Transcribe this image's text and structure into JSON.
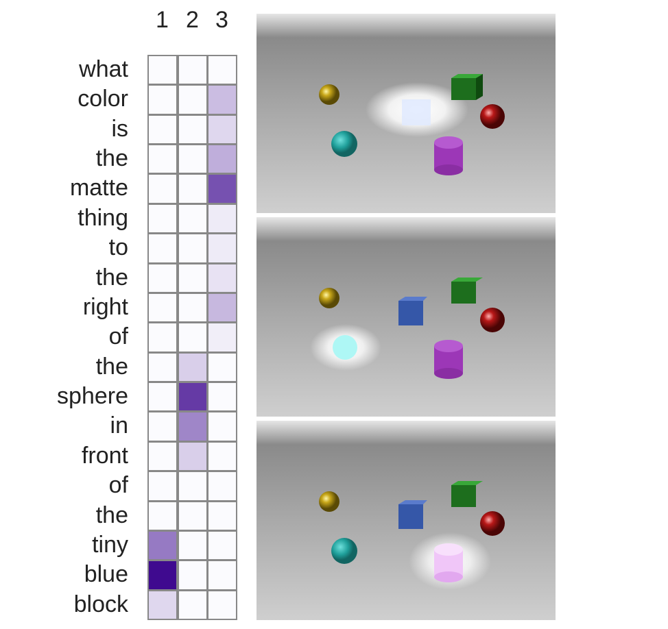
{
  "columns": [
    "1",
    "2",
    "3"
  ],
  "words": [
    "what",
    "color",
    "is",
    "the",
    "matte",
    "thing",
    "to",
    "the",
    "right",
    "of",
    "the",
    "sphere",
    "in",
    "front",
    "of",
    "the",
    "tiny",
    "blue",
    "block"
  ],
  "chart_data": {
    "type": "heatmap",
    "rows": [
      "what",
      "color",
      "is",
      "the",
      "matte",
      "thing",
      "to",
      "the",
      "right",
      "of",
      "the",
      "sphere",
      "in",
      "front",
      "of",
      "the",
      "tiny",
      "blue",
      "block"
    ],
    "columns": [
      "1",
      "2",
      "3"
    ],
    "values": [
      [
        0.0,
        0.0,
        0.0
      ],
      [
        0.0,
        0.0,
        0.22
      ],
      [
        0.0,
        0.0,
        0.12
      ],
      [
        0.0,
        0.0,
        0.28
      ],
      [
        0.0,
        0.0,
        0.68
      ],
      [
        0.0,
        0.0,
        0.05
      ],
      [
        0.0,
        0.0,
        0.05
      ],
      [
        0.0,
        0.0,
        0.08
      ],
      [
        0.0,
        0.0,
        0.24
      ],
      [
        0.0,
        0.0,
        0.04
      ],
      [
        0.0,
        0.15,
        0.0
      ],
      [
        0.0,
        0.78,
        0.0
      ],
      [
        0.0,
        0.45,
        0.0
      ],
      [
        0.0,
        0.15,
        0.0
      ],
      [
        0.0,
        0.0,
        0.0
      ],
      [
        0.0,
        0.0,
        0.0
      ],
      [
        0.5,
        0.0,
        0.0
      ],
      [
        1.0,
        0.0,
        0.0
      ],
      [
        0.12,
        0.0,
        0.0
      ]
    ],
    "color_low": "#fbfbfe",
    "color_high": "#3f0a8f"
  },
  "scenes": [
    {
      "name": "scene-1",
      "highlight": "cube"
    },
    {
      "name": "scene-2",
      "highlight": "cyan-sphere"
    },
    {
      "name": "scene-3",
      "highlight": "purple-cylinder"
    }
  ]
}
